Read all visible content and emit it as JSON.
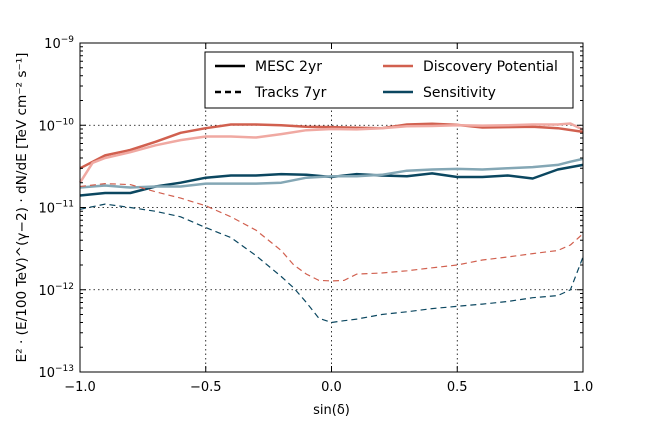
{
  "chart_data": {
    "type": "line",
    "title": "",
    "xlabel": "sin(δ)",
    "ylabel": "E² · (E/100 TeV)^(γ−2) · dN/dE  [TeV cm⁻² s⁻¹]",
    "xlim": [
      -1.0,
      1.0
    ],
    "ylim": [
      1e-13,
      1e-09
    ],
    "yscale": "log",
    "grid": true,
    "x_ticks": [
      {
        "value": -1.0,
        "label": "−1.0"
      },
      {
        "value": -0.5,
        "label": "−0.5"
      },
      {
        "value": 0.0,
        "label": "0.0"
      },
      {
        "value": 0.5,
        "label": "0.5"
      },
      {
        "value": 1.0,
        "label": "1.0"
      }
    ],
    "y_ticks": [
      {
        "value": 1e-13,
        "base": "10",
        "exp": "−13"
      },
      {
        "value": 1e-12,
        "base": "10",
        "exp": "−12"
      },
      {
        "value": 1e-11,
        "base": "10",
        "exp": "−11"
      },
      {
        "value": 1e-10,
        "base": "10",
        "exp": "−10"
      },
      {
        "value": 1e-09,
        "base": "10",
        "exp": "−9"
      }
    ],
    "legend": {
      "placement": "top-right",
      "entries": [
        {
          "label": "MESC 2yr",
          "style": "solid",
          "color": "#000000"
        },
        {
          "label": "Tracks 7yr",
          "style": "dashed",
          "color": "#000000"
        },
        {
          "label": "Discovery Potential",
          "style": "solid",
          "color": "#d1604f"
        },
        {
          "label": "Sensitivity",
          "style": "solid",
          "color": "#0b4760"
        }
      ]
    },
    "series": [
      {
        "name": "MESC 2yr Discovery Potential",
        "color": "#d1604f",
        "style": "solid",
        "x": [
          -1.0,
          -0.9,
          -0.8,
          -0.7,
          -0.6,
          -0.5,
          -0.4,
          -0.3,
          -0.2,
          -0.1,
          0.0,
          0.1,
          0.2,
          0.3,
          0.4,
          0.5,
          0.6,
          0.7,
          0.8,
          0.9,
          1.0
        ],
        "y": [
          3e-11,
          4.3e-11,
          5e-11,
          6.3e-11,
          8.1e-11,
          9.2e-11,
          1.02e-10,
          1.02e-10,
          1e-10,
          9.6e-11,
          9.5e-11,
          9.3e-11,
          9.2e-11,
          1.02e-10,
          1.04e-10,
          1.01e-10,
          9.4e-11,
          9.5e-11,
          9.6e-11,
          9.2e-11,
          8.3e-11
        ]
      },
      {
        "name": "MESC 2yr Discovery Potential (alt)",
        "color": "#f0a9a2",
        "style": "solid",
        "x": [
          -1.0,
          -0.95,
          -0.9,
          -0.8,
          -0.7,
          -0.6,
          -0.5,
          -0.4,
          -0.3,
          -0.2,
          -0.1,
          0.0,
          0.1,
          0.2,
          0.3,
          0.4,
          0.5,
          0.6,
          0.7,
          0.8,
          0.9,
          0.95,
          1.0
        ],
        "y": [
          2e-11,
          3.5e-11,
          4e-11,
          4.7e-11,
          5.7e-11,
          6.6e-11,
          7.3e-11,
          7.3e-11,
          7.1e-11,
          7.8e-11,
          8.7e-11,
          9e-11,
          8.9e-11,
          9.2e-11,
          9.7e-11,
          9.8e-11,
          1e-10,
          9.9e-11,
          1e-10,
          1.02e-10,
          1.02e-10,
          1.05e-10,
          8.8e-11
        ]
      },
      {
        "name": "MESC 2yr Sensitivity",
        "color": "#0b4760",
        "style": "solid",
        "x": [
          -1.0,
          -0.9,
          -0.8,
          -0.7,
          -0.6,
          -0.5,
          -0.4,
          -0.3,
          -0.2,
          -0.1,
          0.0,
          0.1,
          0.2,
          0.3,
          0.4,
          0.5,
          0.6,
          0.7,
          0.8,
          0.9,
          1.0
        ],
        "y": [
          1.4e-11,
          1.5e-11,
          1.5e-11,
          1.8e-11,
          2e-11,
          2.3e-11,
          2.45e-11,
          2.45e-11,
          2.55e-11,
          2.5e-11,
          2.35e-11,
          2.55e-11,
          2.45e-11,
          2.4e-11,
          2.6e-11,
          2.35e-11,
          2.35e-11,
          2.45e-11,
          2.25e-11,
          2.9e-11,
          3.3e-11
        ]
      },
      {
        "name": "MESC 2yr Sensitivity (alt)",
        "color": "#84a7b5",
        "style": "solid",
        "x": [
          -1.0,
          -0.9,
          -0.8,
          -0.7,
          -0.6,
          -0.5,
          -0.4,
          -0.3,
          -0.2,
          -0.1,
          0.0,
          0.1,
          0.2,
          0.3,
          0.4,
          0.5,
          0.6,
          0.7,
          0.8,
          0.9,
          0.95,
          1.0
        ],
        "y": [
          1.75e-11,
          1.85e-11,
          1.75e-11,
          1.8e-11,
          1.8e-11,
          1.95e-11,
          1.95e-11,
          1.95e-11,
          2e-11,
          2.3e-11,
          2.4e-11,
          2.4e-11,
          2.5e-11,
          2.8e-11,
          2.9e-11,
          2.95e-11,
          2.9e-11,
          3e-11,
          3.1e-11,
          3.3e-11,
          3.6e-11,
          3.9e-11
        ]
      },
      {
        "name": "Tracks 7yr Discovery Potential",
        "color": "#d1604f",
        "style": "dashed",
        "x": [
          -1.0,
          -0.9,
          -0.8,
          -0.7,
          -0.6,
          -0.5,
          -0.4,
          -0.3,
          -0.2,
          -0.15,
          -0.1,
          -0.05,
          0.0,
          0.05,
          0.1,
          0.2,
          0.3,
          0.4,
          0.5,
          0.6,
          0.7,
          0.8,
          0.9,
          0.95,
          1.0
        ],
        "y": [
          1.8e-11,
          1.95e-11,
          1.9e-11,
          1.55e-11,
          1.3e-11,
          1.05e-11,
          7.7e-12,
          5.3e-12,
          3e-12,
          2e-12,
          1.55e-12,
          1.3e-12,
          1.28e-12,
          1.3e-12,
          1.55e-12,
          1.6e-12,
          1.7e-12,
          1.85e-12,
          2e-12,
          2.3e-12,
          2.5e-12,
          2.75e-12,
          3e-12,
          3.5e-12,
          4.8e-12
        ]
      },
      {
        "name": "Tracks 7yr Sensitivity",
        "color": "#0b4760",
        "style": "dashed",
        "x": [
          -1.0,
          -0.9,
          -0.8,
          -0.7,
          -0.6,
          -0.5,
          -0.4,
          -0.3,
          -0.2,
          -0.15,
          -0.1,
          -0.05,
          0.0,
          0.05,
          0.1,
          0.2,
          0.3,
          0.4,
          0.5,
          0.6,
          0.7,
          0.8,
          0.9,
          0.95,
          1.0
        ],
        "y": [
          9.5e-12,
          1.1e-11,
          1e-11,
          9e-12,
          7.7e-12,
          5.7e-12,
          4.3e-12,
          2.6e-12,
          1.45e-12,
          1.05e-12,
          7e-13,
          4.5e-13,
          4e-13,
          4.2e-13,
          4.4e-13,
          5e-13,
          5.4e-13,
          5.9e-13,
          6.3e-13,
          6.7e-13,
          7.2e-13,
          8e-13,
          8.5e-13,
          1e-12,
          2.5e-12
        ]
      }
    ]
  }
}
